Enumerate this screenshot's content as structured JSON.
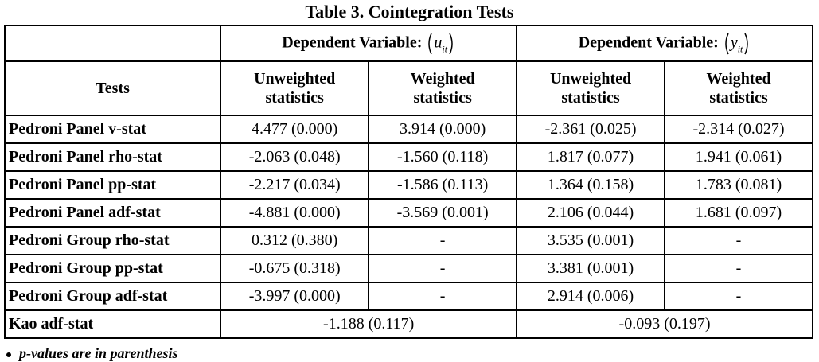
{
  "title": "Table 3. Cointegration Tests",
  "table": {
    "groups": [
      {
        "label": "Dependent Variable:",
        "variable": "u",
        "subscript": "it"
      },
      {
        "label": "Dependent Variable:",
        "variable": "y",
        "subscript": "it"
      }
    ],
    "stub_header": "Tests",
    "columns": [
      "Unweighted statistics",
      "Weighted statistics",
      "Unweighted statistics",
      "Weighted statistics"
    ],
    "rows": [
      [
        "Pedroni Panel v-stat",
        "4.477 (0.000)",
        "3.914 (0.000)",
        "-2.361 (0.025)",
        "-2.314 (0.027)"
      ],
      [
        "Pedroni Panel rho-stat",
        "-2.063 (0.048)",
        "-1.560 (0.118)",
        "1.817 (0.077)",
        "1.941 (0.061)"
      ],
      [
        "Pedroni Panel pp-stat",
        "-2.217 (0.034)",
        "-1.586 (0.113)",
        "1.364 (0.158)",
        "1.783 (0.081)"
      ],
      [
        "Pedroni Panel adf-stat",
        "-4.881 (0.000)",
        "-3.569 (0.001)",
        "2.106 (0.044)",
        "1.681 (0.097)"
      ],
      [
        "Pedroni Group rho-stat",
        "0.312 (0.380)",
        "-",
        "3.535 (0.001)",
        "-"
      ],
      [
        "Pedroni Group pp-stat",
        "-0.675 (0.318)",
        "-",
        "3.381 (0.001)",
        "-"
      ],
      [
        "Pedroni Group adf-stat",
        "-3.997 (0.000)",
        "-",
        "2.914 (0.006)",
        "-"
      ],
      [
        "Kao adf-stat",
        "-1.188 (0.117)",
        "-0.093 (0.197)"
      ]
    ]
  },
  "footnote": "p-values are in parenthesis"
}
